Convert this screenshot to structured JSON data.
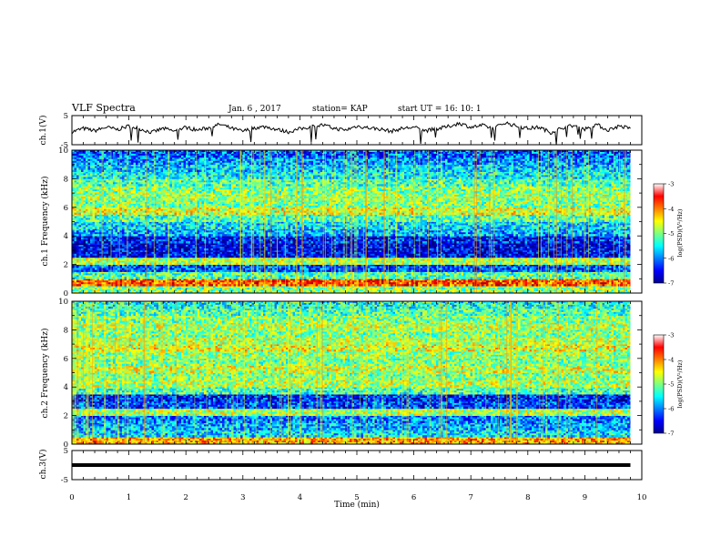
{
  "header": {
    "title": "VLF Spectra",
    "date": "Jan. 6 , 2017",
    "station": "station= KAP",
    "start": "start UT =  16: 10: 1"
  },
  "chart_data": [
    {
      "type": "line",
      "panel": "ch1-waveform",
      "ylabel": "ch.1(V)",
      "ylim": [
        -5,
        5
      ],
      "yticks": [
        "5",
        "-5"
      ],
      "xlim": [
        0,
        10
      ],
      "color": "#000000",
      "x": [
        0,
        0.2,
        0.4,
        0.6,
        0.8,
        1.0,
        1.2,
        1.4,
        1.6,
        1.8,
        2.0,
        2.2,
        2.4,
        2.6,
        2.8,
        3.0,
        3.2,
        3.4,
        3.6,
        3.8,
        4.0,
        4.2,
        4.4,
        4.6,
        4.8,
        5.0,
        5.2,
        5.4,
        5.6,
        5.8,
        6.0,
        6.2,
        6.4,
        6.6,
        6.8,
        7.0,
        7.2,
        7.4,
        7.6,
        7.8,
        8.0,
        8.2,
        8.4,
        8.6,
        8.8,
        9.0,
        9.2,
        9.4,
        9.6,
        9.8
      ],
      "y": [
        -0.6,
        0.6,
        -0.2,
        1.0,
        0.2,
        1.4,
        0.4,
        -0.8,
        0.6,
        -0.4,
        1.0,
        0.0,
        0.8,
        2.0,
        0.6,
        -0.4,
        0.8,
        1.2,
        0.2,
        -0.6,
        0.4,
        1.2,
        1.8,
        0.6,
        0.0,
        1.4,
        0.8,
        0.4,
        -0.4,
        0.6,
        1.0,
        -0.2,
        0.4,
        1.2,
        2.4,
        1.0,
        1.6,
        0.6,
        2.6,
        1.4,
        0.6,
        1.0,
        -0.8,
        0.8,
        1.6,
        0.4,
        2.0,
        0.0,
        1.4,
        0.6
      ]
    },
    {
      "type": "heatmap",
      "panel": "ch1-spectrogram",
      "ylabel": "ch.1 Frequency (kHz)",
      "ylim": [
        0,
        10
      ],
      "yticks": [
        "0",
        "2",
        "4",
        "6",
        "8",
        "10"
      ],
      "xlim": [
        0,
        10
      ],
      "colorbar": {
        "label": "log(PSD)(V²/Hz)",
        "range": [
          -7,
          -3
        ],
        "ticks": [
          "-3",
          "-4",
          "-5",
          "-6",
          "-7"
        ]
      },
      "frequency_bands_kHz": [
        0,
        0.5,
        1,
        1.5,
        2,
        2.5,
        3,
        3.5,
        4,
        4.5,
        5,
        5.5,
        6,
        6.5,
        7,
        7.5,
        8,
        8.5,
        9,
        9.5,
        10
      ],
      "band_log_psd": [
        -5.0,
        -3.8,
        -5.2,
        -6.2,
        -4.8,
        -6.5,
        -6.6,
        -6.4,
        -5.8,
        -5.6,
        -5.2,
        -4.6,
        -5.0,
        -4.9,
        -5.0,
        -5.2,
        -5.5,
        -5.7,
        -5.9,
        -6.1
      ]
    },
    {
      "type": "heatmap",
      "panel": "ch2-spectrogram",
      "ylabel": "ch.2 Frequency (kHz)",
      "ylim": [
        0,
        10
      ],
      "yticks": [
        "0",
        "2",
        "4",
        "6",
        "8",
        "10"
      ],
      "xlim": [
        0,
        10
      ],
      "colorbar": {
        "label": "log(PSD)(V²/Hz)",
        "range": [
          -7,
          -3
        ],
        "ticks": [
          "-3",
          "-4",
          "-5",
          "-6",
          "-7"
        ]
      },
      "frequency_bands_kHz": [
        0,
        0.5,
        1,
        1.5,
        2,
        2.5,
        3,
        3.5,
        4,
        4.5,
        5,
        5.5,
        6,
        6.5,
        7,
        7.5,
        8,
        8.5,
        9,
        9.5,
        10
      ],
      "band_log_psd": [
        -4.2,
        -5.6,
        -5.8,
        -6.0,
        -4.8,
        -6.2,
        -6.4,
        -5.2,
        -4.8,
        -5.0,
        -4.7,
        -5.0,
        -4.9,
        -4.6,
        -4.8,
        -5.0,
        -4.8,
        -5.0,
        -5.2,
        -5.4
      ]
    },
    {
      "type": "line",
      "panel": "ch3-waveform",
      "ylabel": "ch.3(V)",
      "ylim": [
        -5,
        5
      ],
      "yticks": [
        "5",
        "-5"
      ],
      "xlim": [
        0,
        10
      ],
      "xlabel": "Time (min)",
      "xticks": [
        "0",
        "1",
        "2",
        "3",
        "4",
        "5",
        "6",
        "7",
        "8",
        "9",
        "10"
      ],
      "color": "#000000",
      "x": [
        0,
        9.8
      ],
      "y": [
        0,
        0
      ]
    }
  ]
}
